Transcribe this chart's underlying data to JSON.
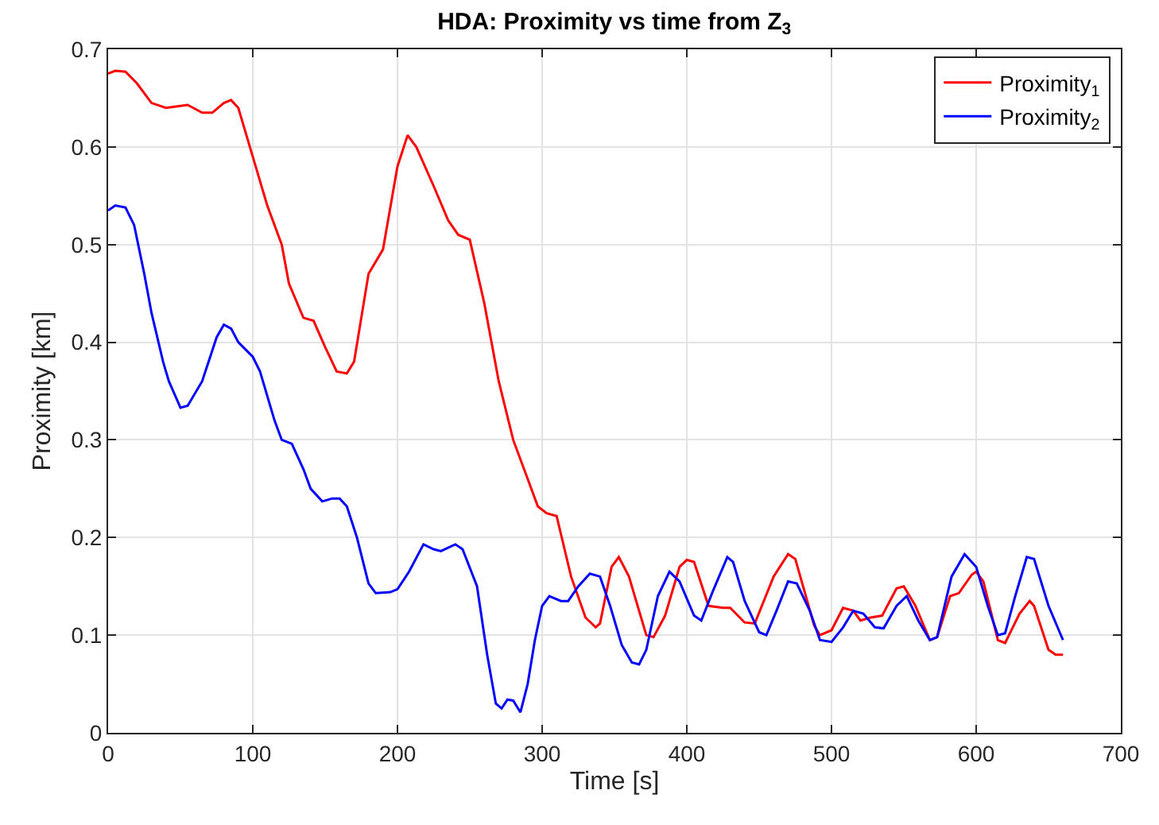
{
  "chart_data": {
    "type": "line",
    "title": "HDA: Proximity vs time from Z$_{3}$",
    "xlabel": "Time [s]",
    "ylabel": "Proximity [km]",
    "xlim": [
      0,
      700
    ],
    "xticks": [
      0,
      100,
      200,
      300,
      400,
      500,
      600,
      700
    ],
    "ylim": [
      0,
      0.7
    ],
    "yticks": [
      0,
      0.1,
      0.2,
      0.3,
      0.4,
      0.5,
      0.6,
      0.7
    ],
    "grid": true,
    "legend": "top right",
    "marker": "none",
    "line_style": "solid",
    "series": [
      {
        "name": "Proximity$_{1}$",
        "color": "#ff0000",
        "x": [
          0,
          5,
          12,
          20,
          30,
          40,
          50,
          55,
          65,
          72,
          80,
          85,
          90,
          100,
          110,
          120,
          125,
          135,
          142,
          150,
          158,
          165,
          170,
          180,
          190,
          200,
          207,
          213,
          225,
          235,
          242,
          250,
          260,
          270,
          280,
          290,
          297,
          303,
          310,
          320,
          330,
          337,
          340,
          348,
          353,
          360,
          372,
          377,
          385,
          395,
          400,
          405,
          415,
          425,
          430,
          440,
          447,
          460,
          470,
          475,
          488,
          492,
          500,
          508,
          515,
          520,
          527,
          535,
          545,
          550,
          558,
          568,
          573,
          582,
          588,
          597,
          600,
          605,
          615,
          620,
          630,
          637,
          640,
          650,
          655,
          660
        ],
        "values": [
          0.675,
          0.678,
          0.677,
          0.665,
          0.645,
          0.64,
          0.642,
          0.643,
          0.635,
          0.635,
          0.645,
          0.648,
          0.64,
          0.59,
          0.54,
          0.5,
          0.46,
          0.425,
          0.422,
          0.395,
          0.37,
          0.368,
          0.38,
          0.47,
          0.495,
          0.58,
          0.612,
          0.6,
          0.56,
          0.525,
          0.51,
          0.505,
          0.44,
          0.36,
          0.3,
          0.26,
          0.232,
          0.225,
          0.222,
          0.16,
          0.118,
          0.108,
          0.112,
          0.17,
          0.18,
          0.16,
          0.1,
          0.098,
          0.12,
          0.17,
          0.177,
          0.175,
          0.13,
          0.128,
          0.128,
          0.113,
          0.112,
          0.16,
          0.183,
          0.178,
          0.11,
          0.1,
          0.105,
          0.128,
          0.125,
          0.115,
          0.118,
          0.12,
          0.148,
          0.15,
          0.13,
          0.095,
          0.098,
          0.14,
          0.143,
          0.162,
          0.165,
          0.155,
          0.095,
          0.092,
          0.122,
          0.135,
          0.13,
          0.085,
          0.08,
          0.08
        ]
      },
      {
        "name": "Proximity$_{2}$",
        "color": "#0000ff",
        "x": [
          0,
          5,
          12,
          18,
          25,
          30,
          38,
          42,
          50,
          55,
          65,
          75,
          80,
          85,
          90,
          100,
          105,
          115,
          120,
          127,
          135,
          140,
          148,
          155,
          160,
          165,
          172,
          180,
          185,
          195,
          200,
          208,
          218,
          225,
          230,
          240,
          245,
          255,
          262,
          268,
          272,
          276,
          280,
          285,
          290,
          295,
          300,
          305,
          313,
          318,
          325,
          333,
          340,
          347,
          355,
          362,
          367,
          372,
          380,
          388,
          395,
          405,
          410,
          418,
          428,
          432,
          440,
          450,
          455,
          462,
          470,
          476,
          485,
          492,
          500,
          508,
          515,
          522,
          530,
          536,
          545,
          552,
          560,
          568,
          573,
          583,
          592,
          600,
          608,
          615,
          620,
          627,
          635,
          640,
          650,
          660
        ],
        "values": [
          0.535,
          0.54,
          0.538,
          0.52,
          0.47,
          0.43,
          0.38,
          0.36,
          0.333,
          0.335,
          0.36,
          0.405,
          0.418,
          0.414,
          0.4,
          0.385,
          0.37,
          0.32,
          0.3,
          0.296,
          0.27,
          0.25,
          0.237,
          0.24,
          0.24,
          0.232,
          0.2,
          0.153,
          0.143,
          0.144,
          0.147,
          0.165,
          0.193,
          0.188,
          0.186,
          0.193,
          0.188,
          0.15,
          0.08,
          0.03,
          0.025,
          0.034,
          0.033,
          0.021,
          0.05,
          0.095,
          0.13,
          0.14,
          0.135,
          0.135,
          0.15,
          0.163,
          0.16,
          0.13,
          0.09,
          0.072,
          0.07,
          0.085,
          0.14,
          0.165,
          0.155,
          0.12,
          0.115,
          0.145,
          0.18,
          0.175,
          0.135,
          0.103,
          0.1,
          0.125,
          0.155,
          0.153,
          0.125,
          0.095,
          0.093,
          0.108,
          0.125,
          0.122,
          0.108,
          0.107,
          0.13,
          0.14,
          0.115,
          0.095,
          0.098,
          0.16,
          0.183,
          0.17,
          0.13,
          0.1,
          0.102,
          0.14,
          0.18,
          0.178,
          0.13,
          0.095
        ]
      }
    ]
  }
}
